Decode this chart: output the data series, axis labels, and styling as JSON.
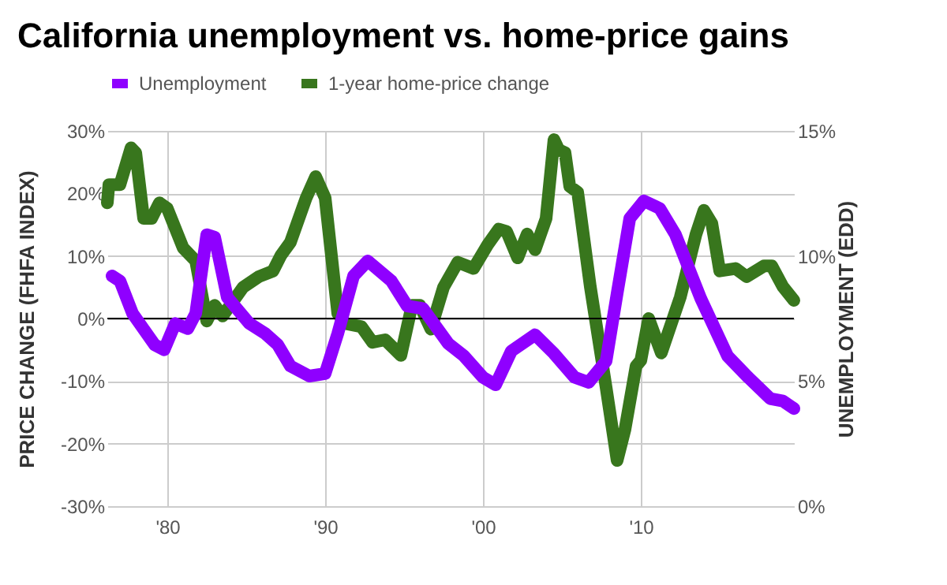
{
  "chart_data": {
    "type": "line",
    "title": "California unemployment vs. home-price gains",
    "ylabel": "PRICE CHANGE (FHFA INDEX)",
    "y2label": "UNEMPLOYMENT (EDD)",
    "xlim": [
      1976.2,
      2019.7
    ],
    "xticks": [
      {
        "value": 1980,
        "label": "'80"
      },
      {
        "value": 1990,
        "label": "'90"
      },
      {
        "value": 2000,
        "label": "'00"
      },
      {
        "value": 2010,
        "label": "'10"
      }
    ],
    "ylim": [
      -30,
      30
    ],
    "yticks": [
      {
        "value": -30,
        "label": "-30%"
      },
      {
        "value": -20,
        "label": "-20%"
      },
      {
        "value": -10,
        "label": "-10%"
      },
      {
        "value": 0,
        "label": "0%"
      },
      {
        "value": 10,
        "label": "10%"
      },
      {
        "value": 20,
        "label": "20%"
      },
      {
        "value": 30,
        "label": "30%"
      }
    ],
    "y2lim": [
      0,
      15
    ],
    "y2ticks": [
      {
        "value": 0,
        "label": "0%"
      },
      {
        "value": 5,
        "label": "5%"
      },
      {
        "value": 10,
        "label": "10%"
      },
      {
        "value": 15,
        "label": "15%"
      }
    ],
    "grid": true,
    "legend": "top",
    "line_style": "solid",
    "ref_lines": [
      {
        "axis": "y",
        "value": 0,
        "color": "#000000"
      }
    ],
    "series": [
      {
        "name": "Unemployment",
        "color": "#8f00ff",
        "axis": "y2",
        "x": [
          1976.5,
          1977.0,
          1977.8,
          1979.2,
          1979.8,
          1980.5,
          1981.3,
          1981.8,
          1982.5,
          1983.0,
          1983.8,
          1985.2,
          1986.2,
          1987.0,
          1987.8,
          1989.0,
          1990.0,
          1990.8,
          1991.8,
          1992.7,
          1994.2,
          1995.2,
          1996.2,
          1997.8,
          1998.8,
          2000.0,
          2000.8,
          2001.8,
          2003.3,
          2004.5,
          2005.8,
          2006.7,
          2007.8,
          2008.5,
          2009.3,
          2010.2,
          2011.2,
          2012.2,
          2013.8,
          2015.5,
          2016.8,
          2018.2,
          2019.0,
          2019.7
        ],
        "values": [
          9.2,
          9.0,
          7.7,
          6.45,
          6.25,
          7.3,
          7.1,
          7.7,
          10.85,
          10.75,
          8.35,
          7.3,
          6.9,
          6.45,
          5.6,
          5.2,
          5.3,
          6.9,
          9.2,
          9.8,
          9.0,
          8.0,
          7.9,
          6.5,
          6.0,
          5.15,
          4.85,
          6.2,
          6.85,
          6.1,
          5.15,
          4.95,
          5.8,
          8.5,
          11.5,
          12.2,
          11.9,
          10.85,
          8.3,
          6.0,
          5.15,
          4.3,
          4.2,
          3.9
        ]
      },
      {
        "name": "1-year home-price change",
        "color": "#38761d",
        "x": [
          1976.2,
          1976.3,
          1977.0,
          1977.7,
          1978.0,
          1978.5,
          1979.0,
          1979.5,
          1980.0,
          1981.0,
          1981.8,
          1982.5,
          1983.0,
          1983.5,
          1984.8,
          1985.8,
          1986.7,
          1987.2,
          1987.8,
          1988.8,
          1989.4,
          1990.0,
          1990.8,
          1991.3,
          1992.3,
          1993.0,
          1993.8,
          1994.8,
          1995.5,
          1996.0,
          1996.7,
          1997.5,
          1998.4,
          1999.4,
          2000.3,
          2001.0,
          2001.5,
          2002.2,
          2002.8,
          2003.3,
          2004.0,
          2004.5,
          2004.8,
          2005.2,
          2005.5,
          2006.0,
          2006.8,
          2007.8,
          2008.5,
          2009.0,
          2009.7,
          2010.0,
          2010.5,
          2011.3,
          2012.5,
          2013.5,
          2014.0,
          2014.5,
          2015.0,
          2016.0,
          2016.7,
          2017.8,
          2018.3,
          2019.0,
          2019.7
        ],
        "values": [
          18.5,
          21.4,
          21.4,
          27.3,
          26.5,
          16.0,
          16.0,
          18.5,
          17.6,
          11.3,
          9.2,
          -0.4,
          2.1,
          0.4,
          5.0,
          6.7,
          7.6,
          10.1,
          12.2,
          19.3,
          22.7,
          19.3,
          0.8,
          -0.8,
          -1.3,
          -3.8,
          -3.4,
          -5.9,
          2.1,
          2.1,
          -1.7,
          5.0,
          9.0,
          8.0,
          11.8,
          14.3,
          13.9,
          9.7,
          13.5,
          11.0,
          16.0,
          28.6,
          27.0,
          26.5,
          21.1,
          20.2,
          5.1,
          -11.0,
          -22.7,
          -17.7,
          -7.6,
          -6.7,
          0.0,
          -5.5,
          3.4,
          13.5,
          17.3,
          15.2,
          7.6,
          8.0,
          6.7,
          8.4,
          8.4,
          5.1,
          2.9
        ]
      }
    ]
  }
}
